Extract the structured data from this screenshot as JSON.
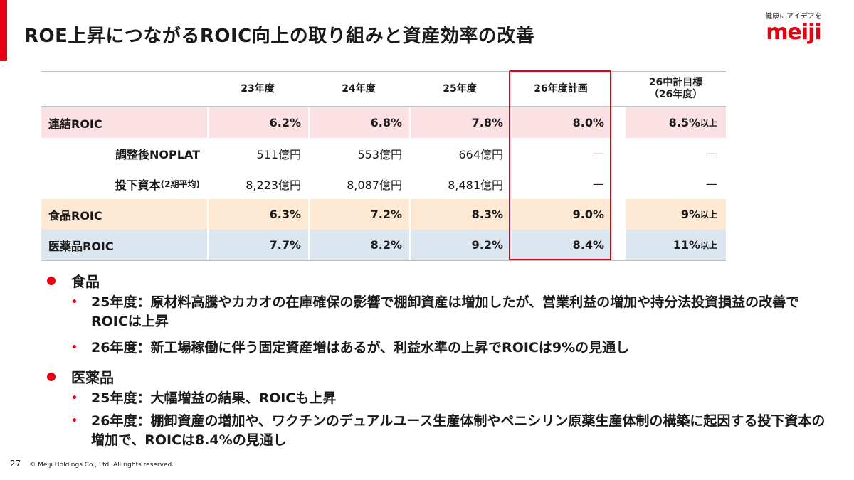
{
  "title": "ROE上昇につながるROIC向上の取り組みと資産効率の改善",
  "logo": {
    "tagline": "健康にアイデアを",
    "word": "meiji"
  },
  "table": {
    "headers": [
      "",
      "23年度",
      "24年度",
      "25年度",
      "26年度計画",
      "26中計目標",
      "（26年度）"
    ],
    "rows": [
      {
        "label": "連結ROIC",
        "v23": "6.2%",
        "v24": "6.8%",
        "v25": "7.8%",
        "plan26": "8.0%",
        "target": "8.5%",
        "target_suffix": "以上"
      },
      {
        "label": "調整後NOPLAT",
        "v23": "511億円",
        "v24": "553億円",
        "v25": "664億円",
        "plan26": "—",
        "target": "—",
        "target_suffix": ""
      },
      {
        "label": "投下資本",
        "label_suffix": "(2期平均)",
        "v23": "8,223億円",
        "v24": "8,087億円",
        "v25": "8,481億円",
        "plan26": "—",
        "target": "—",
        "target_suffix": ""
      },
      {
        "label": "食品ROIC",
        "v23": "6.3%",
        "v24": "7.2%",
        "v25": "8.3%",
        "plan26": "9.0%",
        "target": "9%",
        "target_suffix": "以上"
      },
      {
        "label": "医薬品ROIC",
        "v23": "7.7%",
        "v24": "8.2%",
        "v25": "9.2%",
        "plan26": "8.4%",
        "target": "11%",
        "target_suffix": "以上"
      }
    ]
  },
  "bullets": {
    "food": {
      "heading": "食品",
      "items": [
        "25年度：原材料高騰やカカオの在庫確保の影響で棚卸資産は増加したが、営業利益の増加や持分法投資損益の改善でROICは上昇",
        "26年度：新工場稼働に伴う固定資産増はあるが、利益水準の上昇でROICは9%の見通し"
      ]
    },
    "pharma": {
      "heading": "医薬品",
      "items": [
        "25年度：大幅増益の結果、ROICも上昇",
        "26年度：棚卸資産の増加や、ワクチンのデュアルユース生産体制やペニシリン原薬生産体制の構築に起因する投下資本の増加で、ROICは8.4%の見通し"
      ]
    },
    "bullet_glyph": "•"
  },
  "footer": {
    "page": "27",
    "copyright": "© Meiji Holdings Co., Ltd. All rights reserved."
  },
  "colors": {
    "brand_red": "#e60012",
    "pink_row": "#fbe1e4",
    "orange_row": "#fde9d3",
    "blue_row": "#dce6f1"
  }
}
